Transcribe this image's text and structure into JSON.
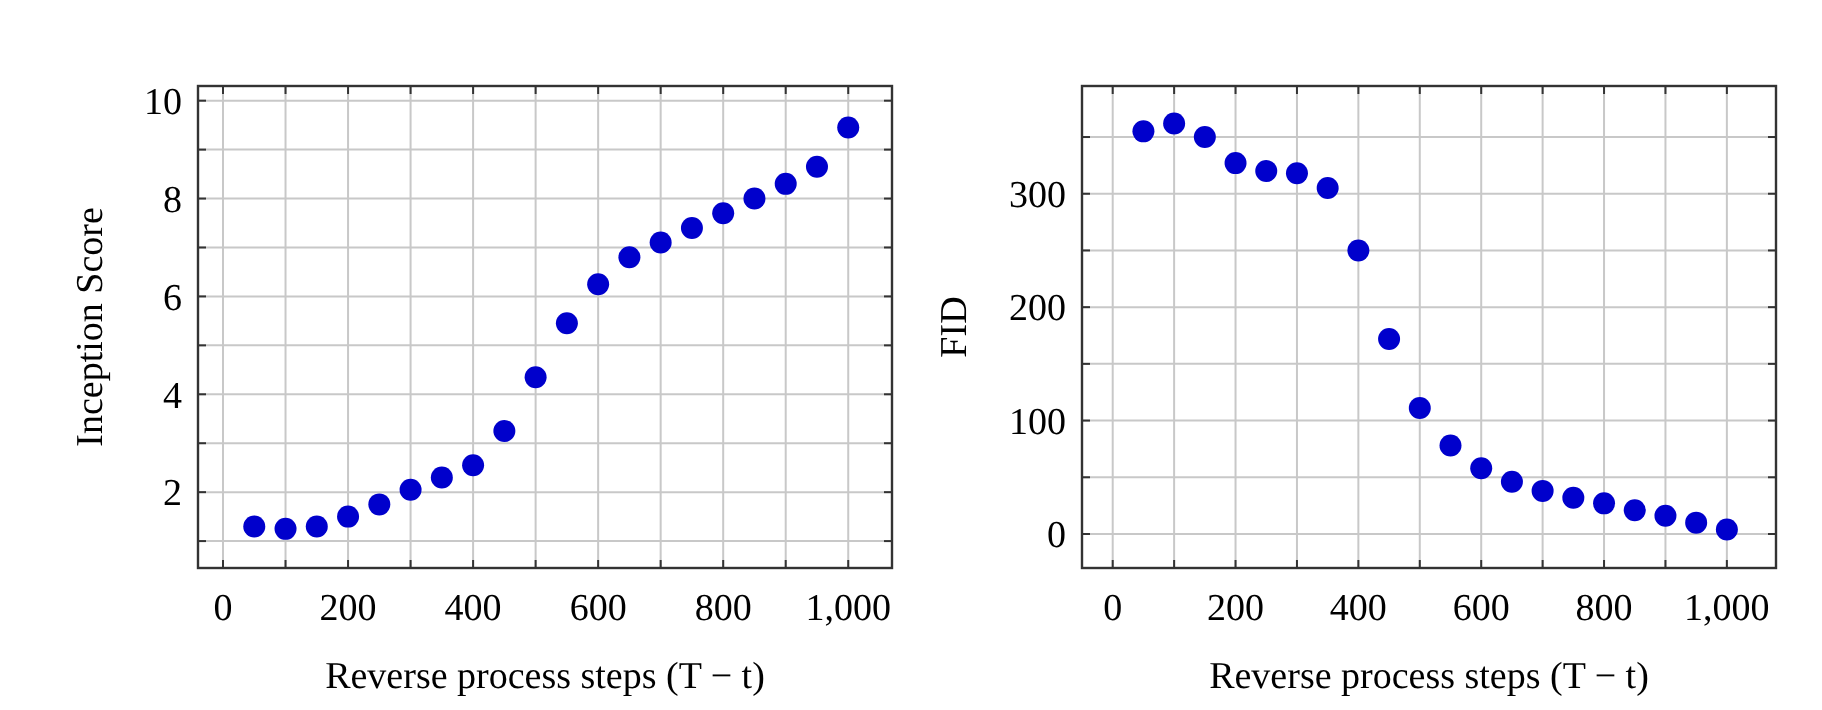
{
  "chart_data": [
    {
      "type": "scatter",
      "xlabel": "Reverse process steps (T − t)",
      "ylabel": "Inception Score",
      "x": [
        50,
        100,
        150,
        200,
        250,
        300,
        350,
        400,
        450,
        500,
        550,
        600,
        650,
        700,
        750,
        800,
        850,
        900,
        950,
        1000
      ],
      "series": [
        {
          "color": "#0000cc",
          "values": [
            1.3,
            1.25,
            1.3,
            1.5,
            1.75,
            2.05,
            2.3,
            2.55,
            3.25,
            4.35,
            5.45,
            6.25,
            6.8,
            7.1,
            7.4,
            7.7,
            8.0,
            8.3,
            8.65,
            9.45
          ]
        }
      ],
      "xlim": [
        -40,
        1070
      ],
      "ylim": [
        0.45,
        10.3
      ],
      "xticks": [
        0,
        {
          "value": 100,
          "label": null
        },
        200,
        {
          "value": 300,
          "label": null
        },
        400,
        {
          "value": 500,
          "label": null
        },
        600,
        {
          "value": 700,
          "label": null
        },
        800,
        {
          "value": 900,
          "label": null
        },
        {
          "value": 1000,
          "label": "1,000"
        }
      ],
      "yticks": [
        {
          "value": 1,
          "label": null
        },
        2,
        {
          "value": 3,
          "label": null
        },
        4,
        {
          "value": 5,
          "label": null
        },
        6,
        {
          "value": 7,
          "label": null
        },
        8,
        {
          "value": 9,
          "label": null
        },
        10
      ],
      "grid": true,
      "marker": "circle"
    },
    {
      "type": "scatter",
      "xlabel": "Reverse process steps (T − t)",
      "ylabel": "FID",
      "x": [
        50,
        100,
        150,
        200,
        250,
        300,
        350,
        400,
        450,
        500,
        550,
        600,
        650,
        700,
        750,
        800,
        850,
        900,
        950,
        1000
      ],
      "series": [
        {
          "color": "#0000cc",
          "values": [
            355,
            362,
            350,
            327,
            320,
            318,
            305,
            250,
            172,
            111,
            78,
            58,
            46,
            38,
            32,
            27,
            21,
            16,
            10,
            4
          ]
        }
      ],
      "xlim": [
        -50,
        1080
      ],
      "ylim": [
        -30,
        395
      ],
      "xticks": [
        0,
        {
          "value": 100,
          "label": null
        },
        200,
        {
          "value": 300,
          "label": null
        },
        400,
        {
          "value": 500,
          "label": null
        },
        600,
        {
          "value": 700,
          "label": null
        },
        800,
        {
          "value": 900,
          "label": null
        },
        {
          "value": 1000,
          "label": "1,000"
        }
      ],
      "yticks": [
        0,
        {
          "value": 50,
          "label": null
        },
        100,
        {
          "value": 150,
          "label": null
        },
        200,
        {
          "value": 250,
          "label": null
        },
        300,
        {
          "value": 350,
          "label": null
        }
      ],
      "grid": true,
      "marker": "circle"
    }
  ]
}
